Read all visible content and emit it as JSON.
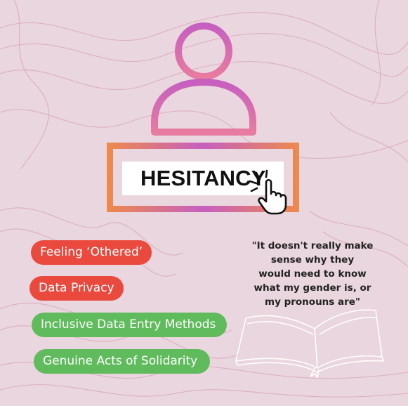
{
  "header": {
    "word": "HESITANCY"
  },
  "tags": [
    {
      "label": "Feeling ‘Othered’",
      "color": "#ea4a3e"
    },
    {
      "label": "Data Privacy",
      "color": "#ea4a3e"
    },
    {
      "label": "Inclusive Data Entry Methods",
      "color": "#5fbb5c"
    },
    {
      "label": "Genuine Acts of Solidarity",
      "color": "#5fbb5c"
    }
  ],
  "quote": {
    "lines": [
      "\"It doesn't really make",
      "sense why they",
      "would need to know",
      "what my gender is, or",
      "my pronouns are\""
    ]
  },
  "icons": {
    "person": "person-icon",
    "pointer": "hand-pointer-icon",
    "book": "open-book-icon"
  },
  "colors": {
    "background": "#ead6de",
    "accent_orange": "#ee8a4a",
    "accent_purple": "#c65fc0"
  }
}
